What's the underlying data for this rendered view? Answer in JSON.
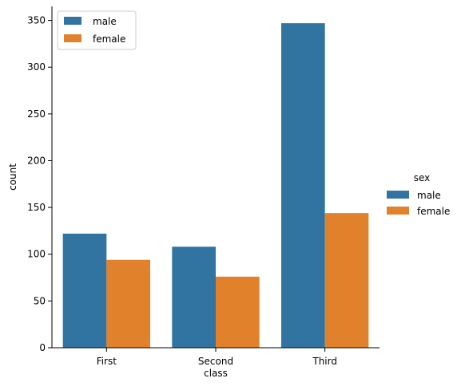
{
  "chart_data": {
    "type": "bar",
    "xlabel": "class",
    "ylabel": "count",
    "categories": [
      "First",
      "Second",
      "Third"
    ],
    "series": [
      {
        "name": "male",
        "values": [
          122,
          108,
          347
        ],
        "color": "#3274a1"
      },
      {
        "name": "female",
        "values": [
          94,
          76,
          144
        ],
        "color": "#e1812c"
      }
    ],
    "ylim": [
      0,
      365
    ],
    "yticks": [
      0,
      50,
      100,
      150,
      200,
      250,
      300,
      350
    ],
    "grid": false,
    "legend_inner": {
      "placement": "top-left",
      "entries": [
        "male",
        "female"
      ]
    },
    "legend_outer": {
      "placement": "right",
      "title": "sex",
      "entries": [
        "male",
        "female"
      ]
    }
  }
}
